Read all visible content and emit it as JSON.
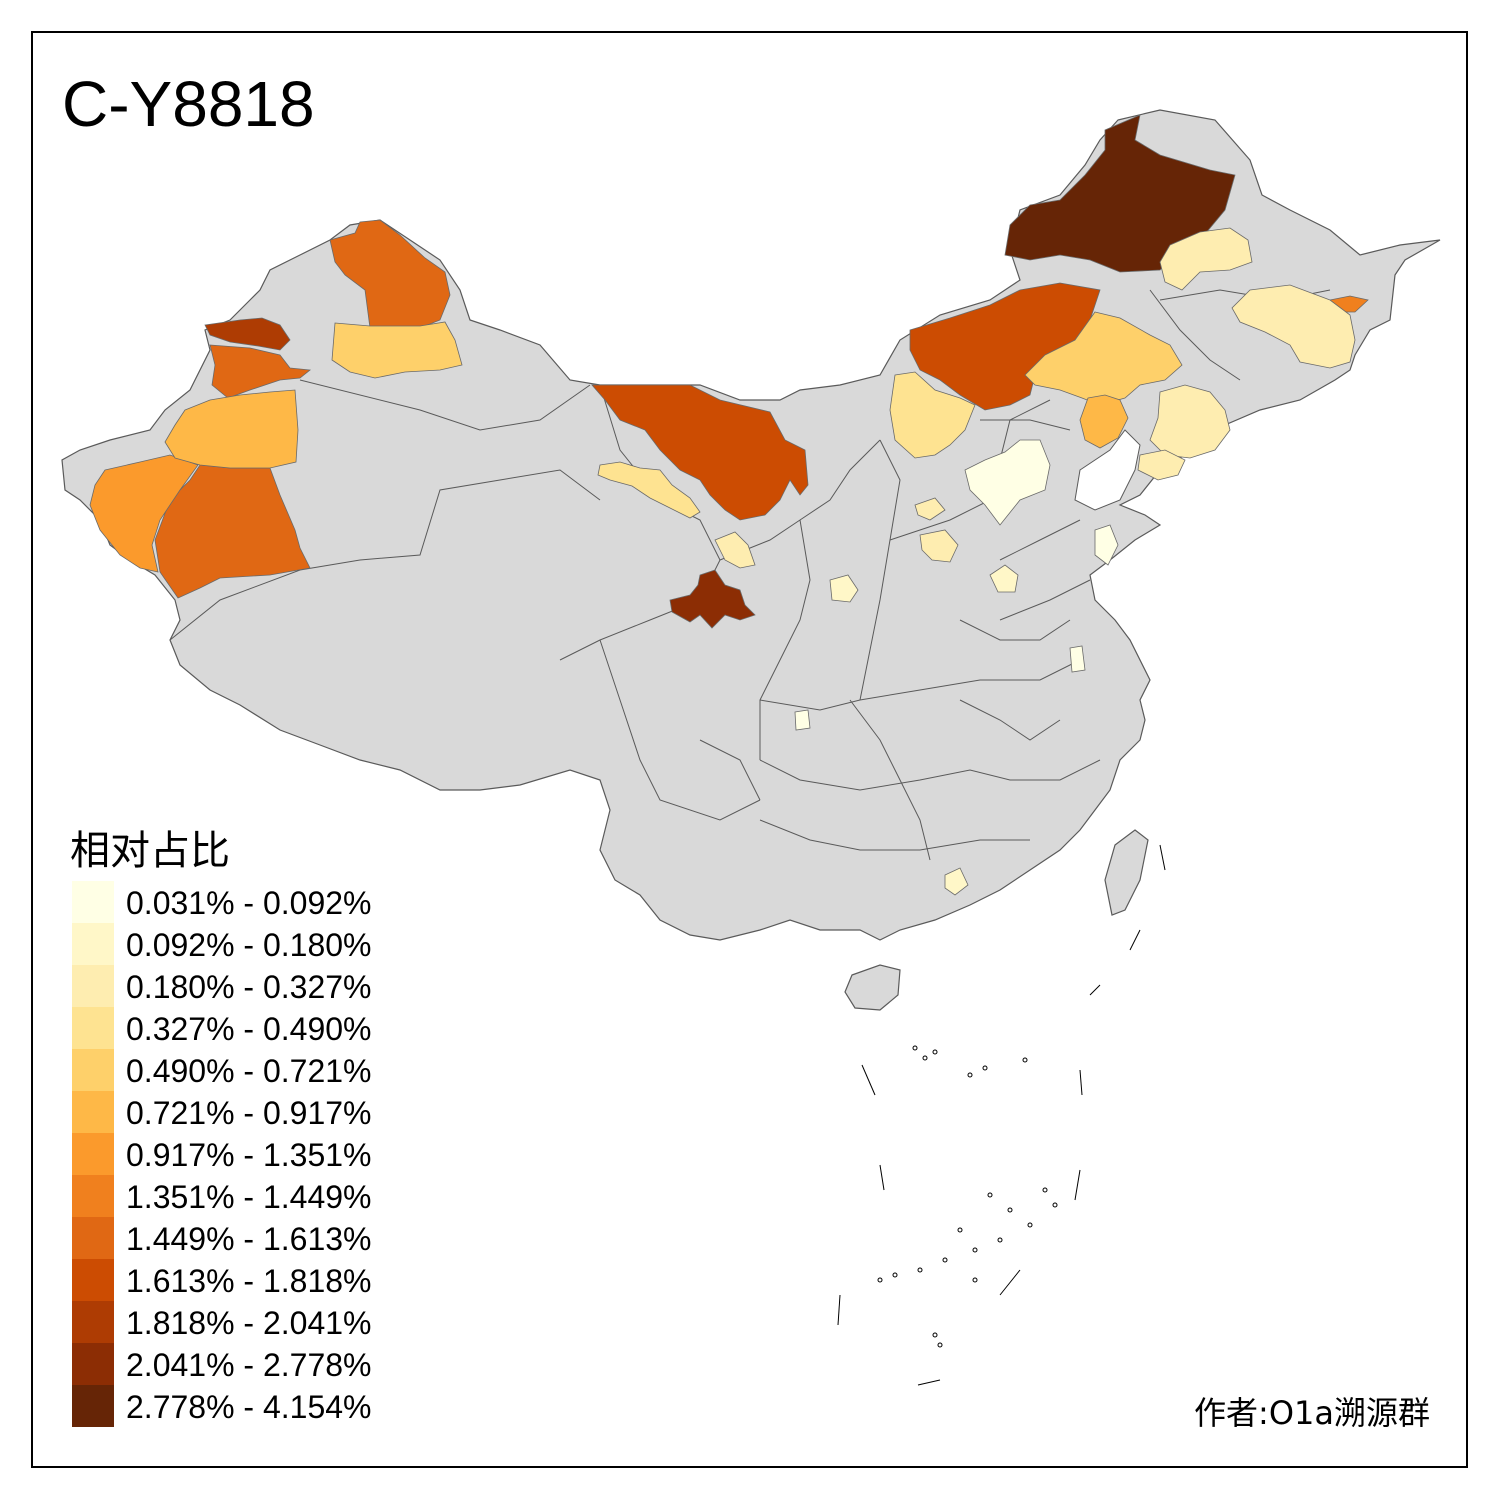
{
  "title": "C-Y8818",
  "legend": {
    "title": "相对占比",
    "items": [
      {
        "label": "0.031% - 0.092%",
        "color": "#FFFFE5"
      },
      {
        "label": "0.092% - 0.180%",
        "color": "#FFF7C8"
      },
      {
        "label": "0.180% - 0.327%",
        "color": "#FEEDB0"
      },
      {
        "label": "0.327% - 0.490%",
        "color": "#FEE391"
      },
      {
        "label": "0.490% - 0.721%",
        "color": "#FED06A"
      },
      {
        "label": "0.721% - 0.917%",
        "color": "#FEB847"
      },
      {
        "label": "0.917% - 1.351%",
        "color": "#FB9A2C"
      },
      {
        "label": "1.351% - 1.449%",
        "color": "#F0801E"
      },
      {
        "label": "1.449% - 1.613%",
        "color": "#E06814"
      },
      {
        "label": "1.613% - 1.818%",
        "color": "#CC4C02"
      },
      {
        "label": "1.818% - 2.041%",
        "color": "#AE3C03"
      },
      {
        "label": "2.041% - 2.778%",
        "color": "#8C2D04"
      },
      {
        "label": "2.778% - 4.154%",
        "color": "#662506"
      }
    ]
  },
  "credit": "作者:O1a溯源群",
  "colors": {
    "no_data": "#D9D9D9",
    "border": "#5A5A5A",
    "frame": "#000000"
  },
  "regions": [
    {
      "id": "hulunbuir",
      "bin": 12
    },
    {
      "id": "qinghai-central",
      "bin": 11
    },
    {
      "id": "xinjiang-tacheng-west",
      "bin": 10
    },
    {
      "id": "inner-mongolia-central",
      "bin": 9
    },
    {
      "id": "inner-mongolia-west",
      "bin": 9
    },
    {
      "id": "xinjiang-altay",
      "bin": 8
    },
    {
      "id": "xinjiang-hotan",
      "bin": 8
    },
    {
      "id": "xinjiang-ili",
      "bin": 8
    },
    {
      "id": "heilongjiang-east-spot",
      "bin": 7
    },
    {
      "id": "xinjiang-kashgar",
      "bin": 6
    },
    {
      "id": "xinjiang-aksu",
      "bin": 5
    },
    {
      "id": "xinjiang-changji",
      "bin": 4
    },
    {
      "id": "gansu-hexi",
      "bin": 3
    },
    {
      "id": "inner-mongolia-east",
      "bin": 4
    },
    {
      "id": "liaoning-west",
      "bin": 5
    },
    {
      "id": "hebei-north",
      "bin": 3
    },
    {
      "id": "heilongjiang-northwest",
      "bin": 2
    },
    {
      "id": "heilongjiang-east",
      "bin": 2
    },
    {
      "id": "jilin-east",
      "bin": 2
    },
    {
      "id": "gansu-east",
      "bin": 2
    },
    {
      "id": "shanxi-central",
      "bin": 2
    },
    {
      "id": "shanxi-south",
      "bin": 2
    },
    {
      "id": "liaoning-east",
      "bin": 2
    },
    {
      "id": "shandong-west",
      "bin": 1
    },
    {
      "id": "hebei-central",
      "bin": 0
    },
    {
      "id": "shaanxi-south",
      "bin": 1
    },
    {
      "id": "sichuan-spot",
      "bin": 0
    },
    {
      "id": "jiangsu-spot",
      "bin": 0
    },
    {
      "id": "shandong-east",
      "bin": 0
    },
    {
      "id": "guangdong-spot",
      "bin": 1
    }
  ]
}
